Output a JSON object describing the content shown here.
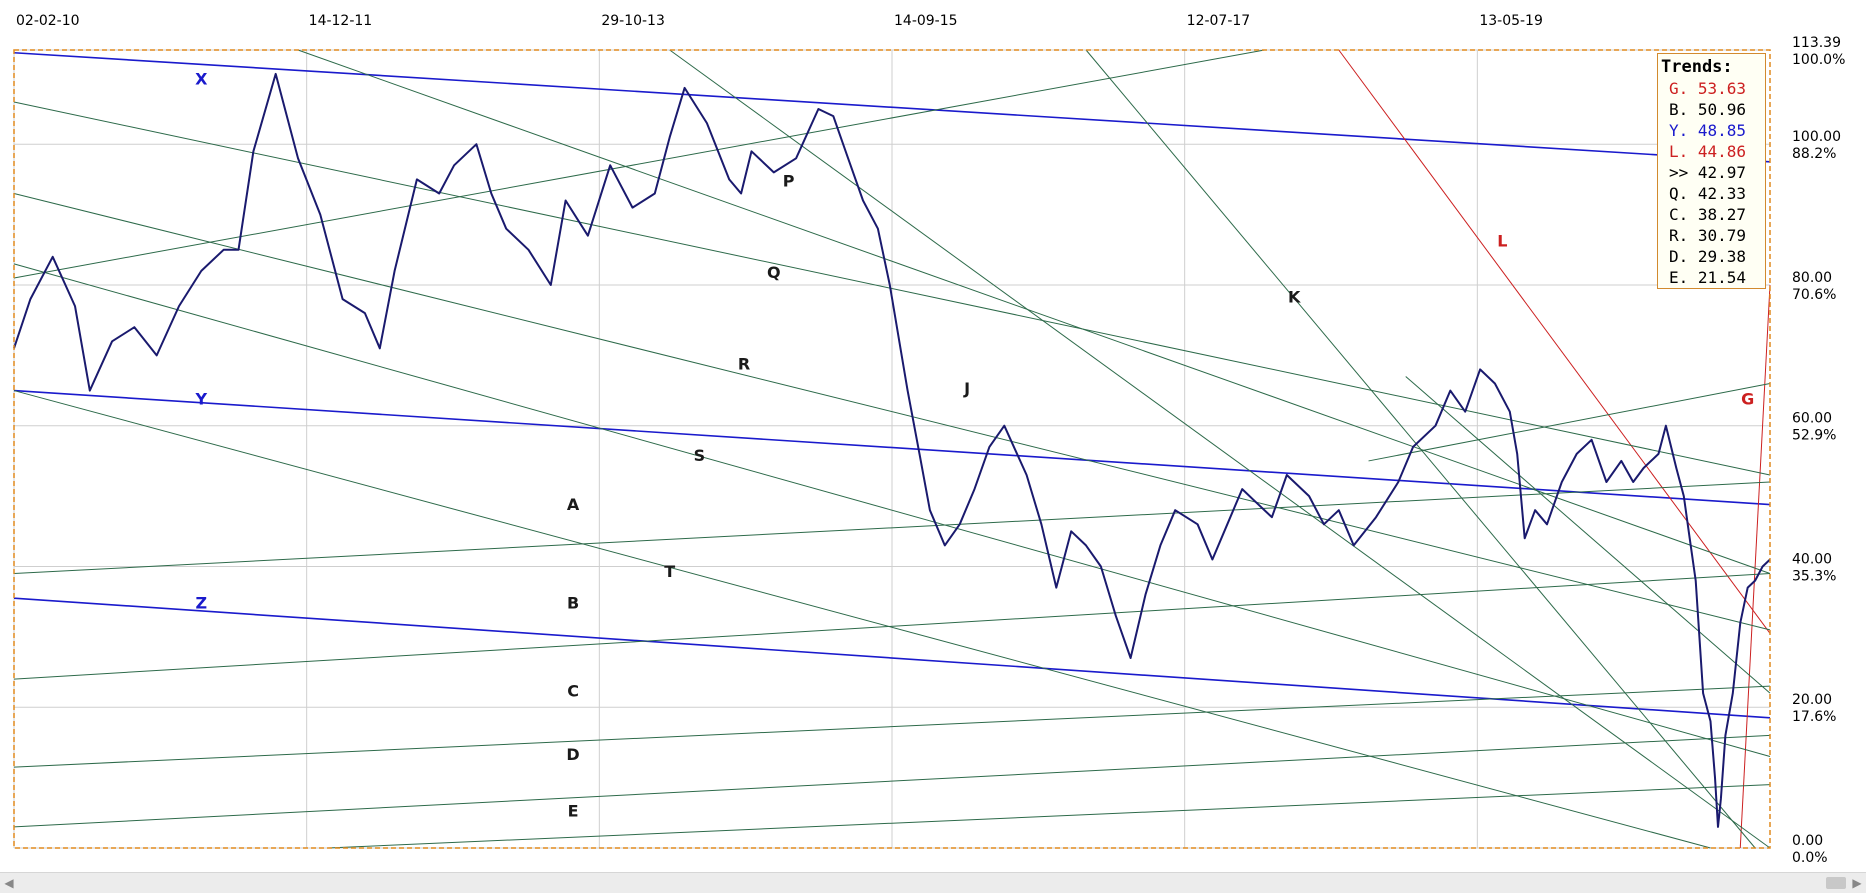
{
  "chart_data": {
    "type": "line",
    "title": "",
    "xlabel": "",
    "ylabel": "",
    "x_tick_labels": [
      "02-02-10",
      "14-12-11",
      "29-10-13",
      "14-09-15",
      "12-07-17",
      "13-05-19"
    ],
    "x_range": [
      2010.09,
      2021.9
    ],
    "ylim": [
      0,
      113.39
    ],
    "y_ticks": [
      {
        "price": "113.39",
        "value": 113.39,
        "pct": "100.0%"
      },
      {
        "price": "100.00",
        "value": 100.0,
        "pct": "88.2%"
      },
      {
        "price": "80.00",
        "value": 80.0,
        "pct": "70.6%"
      },
      {
        "price": "60.00",
        "value": 60.0,
        "pct": "52.9%"
      },
      {
        "price": "40.00",
        "value": 40.0,
        "pct": "35.3%"
      },
      {
        "price": "20.00",
        "value": 20.0,
        "pct": "17.6%"
      },
      {
        "price": "0.00",
        "value": 0.0,
        "pct": "0.0%"
      }
    ],
    "grid": true,
    "series": [
      {
        "color": "#1a1a6e",
        "points": [
          [
            2010.09,
            71
          ],
          [
            2010.2,
            78
          ],
          [
            2010.35,
            84
          ],
          [
            2010.5,
            77
          ],
          [
            2010.6,
            65
          ],
          [
            2010.75,
            72
          ],
          [
            2010.9,
            74
          ],
          [
            2011.05,
            70
          ],
          [
            2011.2,
            77
          ],
          [
            2011.35,
            82
          ],
          [
            2011.5,
            85
          ],
          [
            2011.6,
            85
          ],
          [
            2011.7,
            99
          ],
          [
            2011.85,
            110
          ],
          [
            2012.0,
            98
          ],
          [
            2012.15,
            90
          ],
          [
            2012.3,
            78
          ],
          [
            2012.45,
            76
          ],
          [
            2012.55,
            71
          ],
          [
            2012.65,
            82
          ],
          [
            2012.8,
            95
          ],
          [
            2012.95,
            93
          ],
          [
            2013.05,
            97
          ],
          [
            2013.2,
            100
          ],
          [
            2013.3,
            93
          ],
          [
            2013.4,
            88
          ],
          [
            2013.55,
            85
          ],
          [
            2013.7,
            80
          ],
          [
            2013.8,
            92
          ],
          [
            2013.95,
            87
          ],
          [
            2014.1,
            97
          ],
          [
            2014.25,
            91
          ],
          [
            2014.4,
            93
          ],
          [
            2014.5,
            101
          ],
          [
            2014.6,
            108
          ],
          [
            2014.75,
            103
          ],
          [
            2014.9,
            95
          ],
          [
            2014.98,
            93
          ],
          [
            2015.05,
            99
          ],
          [
            2015.2,
            96
          ],
          [
            2015.35,
            98
          ],
          [
            2015.5,
            105
          ],
          [
            2015.6,
            104
          ],
          [
            2015.7,
            98
          ],
          [
            2015.8,
            92
          ],
          [
            2015.9,
            88
          ],
          [
            2015.98,
            80
          ],
          [
            2016.1,
            65
          ],
          [
            2016.18,
            56
          ],
          [
            2016.25,
            48
          ],
          [
            2016.35,
            43
          ],
          [
            2016.45,
            46
          ],
          [
            2016.55,
            51
          ],
          [
            2016.65,
            57
          ],
          [
            2016.75,
            60
          ],
          [
            2016.9,
            53
          ],
          [
            2017.0,
            46
          ],
          [
            2017.1,
            37
          ],
          [
            2017.2,
            45
          ],
          [
            2017.3,
            43
          ],
          [
            2017.4,
            40
          ],
          [
            2017.5,
            33
          ],
          [
            2017.6,
            27
          ],
          [
            2017.7,
            36
          ],
          [
            2017.8,
            43
          ],
          [
            2017.9,
            48
          ],
          [
            2018.05,
            46
          ],
          [
            2018.15,
            41
          ],
          [
            2018.25,
            46
          ],
          [
            2018.35,
            51
          ],
          [
            2018.45,
            49
          ],
          [
            2018.55,
            47
          ],
          [
            2018.65,
            53
          ],
          [
            2018.8,
            50
          ],
          [
            2018.9,
            46
          ],
          [
            2019.0,
            48
          ],
          [
            2019.1,
            43
          ],
          [
            2019.25,
            47
          ],
          [
            2019.4,
            52
          ],
          [
            2019.5,
            57
          ],
          [
            2019.65,
            60
          ],
          [
            2019.75,
            65
          ],
          [
            2019.85,
            62
          ],
          [
            2019.95,
            68
          ],
          [
            2020.05,
            66
          ],
          [
            2020.15,
            62
          ],
          [
            2020.2,
            56
          ],
          [
            2020.25,
            44
          ],
          [
            2020.32,
            48
          ],
          [
            2020.4,
            46
          ],
          [
            2020.5,
            52
          ],
          [
            2020.6,
            56
          ],
          [
            2020.7,
            58
          ],
          [
            2020.8,
            52
          ],
          [
            2020.9,
            55
          ],
          [
            2020.98,
            52
          ],
          [
            2021.05,
            54
          ],
          [
            2021.15,
            56
          ],
          [
            2021.2,
            60
          ],
          [
            2021.27,
            54
          ],
          [
            2021.32,
            50
          ],
          [
            2021.36,
            44
          ],
          [
            2021.4,
            38
          ],
          [
            2021.45,
            22
          ],
          [
            2021.5,
            18
          ],
          [
            2021.53,
            10
          ],
          [
            2021.55,
            3
          ],
          [
            2021.57,
            7
          ],
          [
            2021.6,
            16
          ],
          [
            2021.65,
            22
          ],
          [
            2021.7,
            32
          ],
          [
            2021.75,
            37
          ],
          [
            2021.8,
            38
          ],
          [
            2021.85,
            40
          ],
          [
            2021.9,
            41
          ]
        ]
      }
    ],
    "trend_lines": [
      {
        "label": "X",
        "color": "#1a1acc",
        "x1": 2010.09,
        "y1": 113.0,
        "x2": 2021.9,
        "y2": 97.5,
        "width": 1.6
      },
      {
        "label": "Y",
        "color": "#1a1acc",
        "x1": 2010.09,
        "y1": 65.0,
        "x2": 2021.9,
        "y2": 48.8,
        "width": 1.6
      },
      {
        "label": "Z",
        "color": "#1a1acc",
        "x1": 2010.09,
        "y1": 35.5,
        "x2": 2021.9,
        "y2": 18.5,
        "width": 1.6
      },
      {
        "label": "L",
        "color": "#cc2020",
        "x1": 2019.0,
        "y1": 113.39,
        "x2": 2021.9,
        "y2": 30.5,
        "width": 1
      },
      {
        "label": "G",
        "color": "#cc2020",
        "x1": 2021.7,
        "y1": 0,
        "x2": 2021.9,
        "y2": 80.0,
        "width": 1
      },
      {
        "label": "A",
        "color": "#2d6a4a",
        "x1": 2010.09,
        "y1": 39.0,
        "x2": 2021.9,
        "y2": 52.0,
        "width": 1
      },
      {
        "label": "B",
        "color": "#2d6a4a",
        "x1": 2010.09,
        "y1": 24.0,
        "x2": 2021.9,
        "y2": 39.0,
        "width": 1
      },
      {
        "label": "C",
        "color": "#2d6a4a",
        "x1": 2010.09,
        "y1": 11.5,
        "x2": 2021.9,
        "y2": 23.0,
        "width": 1
      },
      {
        "label": "D",
        "color": "#2d6a4a",
        "x1": 2010.09,
        "y1": 3.0,
        "x2": 2021.9,
        "y2": 16.0,
        "width": 1
      },
      {
        "label": "E",
        "color": "#2d6a4a",
        "x1": 2012.2,
        "y1": 0,
        "x2": 2021.9,
        "y2": 9.0,
        "width": 1
      },
      {
        "label": "K",
        "color": "#2d6a4a",
        "x1": 2010.09,
        "y1": 106.0,
        "x2": 2021.9,
        "y2": 53.0,
        "width": 1
      },
      {
        "label": "P",
        "color": "#2d6a4a",
        "x1": 2012.0,
        "y1": 113.39,
        "x2": 2021.9,
        "y2": 39.0,
        "width": 1
      },
      {
        "label": "Q",
        "color": "#2d6a4a",
        "x1": 2010.09,
        "y1": 93.0,
        "x2": 2021.9,
        "y2": 31.0,
        "width": 1
      },
      {
        "label": "R",
        "color": "#2d6a4a",
        "x1": 2010.09,
        "y1": 83.0,
        "x2": 2021.9,
        "y2": 13.0,
        "width": 1
      },
      {
        "label": "S",
        "color": "#2d6a4a",
        "x1": 2010.09,
        "y1": 65.0,
        "x2": 2021.5,
        "y2": 0,
        "width": 1
      },
      {
        "label": "F1",
        "color": "#2d6a4a",
        "x1": 2010.09,
        "y1": 81.0,
        "x2": 2018.5,
        "y2": 113.39,
        "width": 1
      },
      {
        "label": "F2",
        "color": "#2d6a4a",
        "x1": 2014.5,
        "y1": 113.39,
        "x2": 2021.9,
        "y2": 0,
        "width": 1
      },
      {
        "label": "F3",
        "color": "#2d6a4a",
        "x1": 2017.3,
        "y1": 113.39,
        "x2": 2021.8,
        "y2": 0,
        "width": 1
      },
      {
        "label": "F4",
        "color": "#2d6a4a",
        "x1": 2019.45,
        "y1": 67.0,
        "x2": 2021.9,
        "y2": 22.0,
        "width": 1
      },
      {
        "label": "F5",
        "color": "#2d6a4a",
        "x1": 2019.2,
        "y1": 55.0,
        "x2": 2021.9,
        "y2": 66.0,
        "width": 1
      }
    ],
    "line_labels": [
      {
        "text": "X",
        "x": 2011.35,
        "y": 108.5,
        "color": "#1a1acc"
      },
      {
        "text": "Y",
        "x": 2011.35,
        "y": 63.0,
        "color": "#1a1acc"
      },
      {
        "text": "Z",
        "x": 2011.35,
        "y": 34.0,
        "color": "#1a1acc"
      },
      {
        "text": "P",
        "x": 2015.3,
        "y": 94.0,
        "color": "#1a1a1a"
      },
      {
        "text": "Q",
        "x": 2015.2,
        "y": 81.0,
        "color": "#1a1a1a"
      },
      {
        "text": "R",
        "x": 2015.0,
        "y": 68.0,
        "color": "#1a1a1a"
      },
      {
        "text": "S",
        "x": 2014.7,
        "y": 55.0,
        "color": "#1a1a1a"
      },
      {
        "text": "T",
        "x": 2014.5,
        "y": 38.5,
        "color": "#1a1a1a"
      },
      {
        "text": "A",
        "x": 2013.85,
        "y": 48.0,
        "color": "#1a1a1a"
      },
      {
        "text": "B",
        "x": 2013.85,
        "y": 34.0,
        "color": "#1a1a1a"
      },
      {
        "text": "C",
        "x": 2013.85,
        "y": 21.5,
        "color": "#1a1a1a"
      },
      {
        "text": "D",
        "x": 2013.85,
        "y": 12.5,
        "color": "#1a1a1a"
      },
      {
        "text": "E",
        "x": 2013.85,
        "y": 4.5,
        "color": "#1a1a1a"
      },
      {
        "text": "J",
        "x": 2016.5,
        "y": 64.5,
        "color": "#1a1a1a"
      },
      {
        "text": "K",
        "x": 2018.7,
        "y": 77.5,
        "color": "#1a1a1a"
      },
      {
        "text": "L",
        "x": 2020.1,
        "y": 85.5,
        "color": "#cc2020"
      },
      {
        "text": "G",
        "x": 2021.75,
        "y": 63.0,
        "color": "#cc2020"
      }
    ]
  },
  "trends_panel": {
    "title": "Trends:",
    "rows": [
      {
        "key": "G.",
        "value": "53.63",
        "color": "#cc2020"
      },
      {
        "key": "B.",
        "value": "50.96",
        "color": "#000000"
      },
      {
        "key": "Y.",
        "value": "48.85",
        "color": "#1a1acc"
      },
      {
        "key": "L.",
        "value": "44.86",
        "color": "#cc2020"
      },
      {
        "key": ">>",
        "value": "42.97",
        "color": "#000000"
      },
      {
        "key": "Q.",
        "value": "42.33",
        "color": "#000000"
      },
      {
        "key": "C.",
        "value": "38.27",
        "color": "#000000"
      },
      {
        "key": "R.",
        "value": "30.79",
        "color": "#000000"
      },
      {
        "key": "D.",
        "value": "29.38",
        "color": "#000000"
      },
      {
        "key": "E.",
        "value": "21.54",
        "color": "#000000"
      }
    ]
  }
}
